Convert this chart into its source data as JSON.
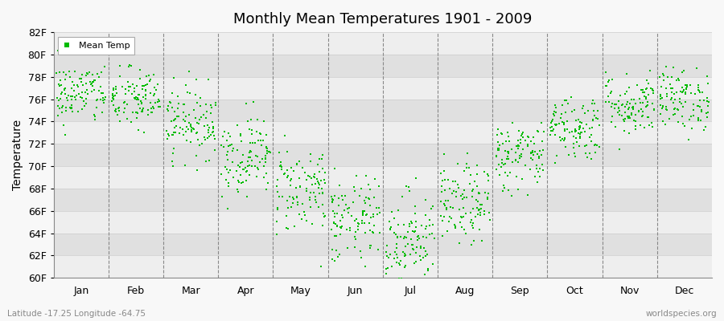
{
  "title": "Monthly Mean Temperatures 1901 - 2009",
  "ylabel": "Temperature",
  "subtitle_left": "Latitude -17.25 Longitude -64.75",
  "subtitle_right": "worldspecies.org",
  "legend_label": "Mean Temp",
  "dot_color": "#00bb00",
  "background_color": "#f8f8f8",
  "plot_bg_light": "#eeeeee",
  "plot_bg_dark": "#e0e0e0",
  "ylim": [
    60,
    82
  ],
  "yticks": [
    60,
    62,
    64,
    66,
    68,
    70,
    72,
    74,
    76,
    78,
    80,
    82
  ],
  "ytick_labels": [
    "60F",
    "62F",
    "64F",
    "66F",
    "68F",
    "70F",
    "72F",
    "74F",
    "76F",
    "78F",
    "80F",
    "82F"
  ],
  "months": [
    "Jan",
    "Feb",
    "Mar",
    "Apr",
    "May",
    "Jun",
    "Jul",
    "Aug",
    "Sep",
    "Oct",
    "Nov",
    "Dec"
  ],
  "month_means": [
    76.5,
    76.0,
    74.0,
    71.0,
    68.0,
    65.0,
    63.5,
    66.5,
    71.0,
    73.5,
    75.5,
    76.0
  ],
  "month_stds": [
    1.4,
    1.4,
    1.6,
    1.8,
    2.0,
    2.0,
    2.2,
    1.8,
    1.6,
    1.5,
    1.4,
    1.4
  ],
  "n_years": 109,
  "seed": 42,
  "dot_size": 3,
  "total_months": 12
}
